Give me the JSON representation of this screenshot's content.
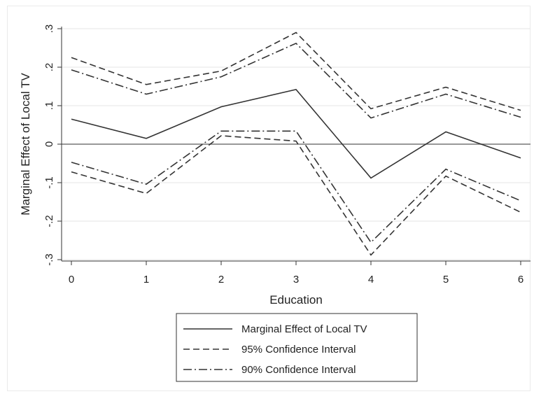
{
  "chart_data": {
    "type": "line",
    "title": "",
    "xlabel": "Education",
    "ylabel": "Marginal Effect of Local TV",
    "x": [
      0,
      1,
      2,
      3,
      4,
      5,
      6
    ],
    "xticks": [
      "0",
      "1",
      "2",
      "3",
      "4",
      "5",
      "6"
    ],
    "xlim": [
      0,
      6
    ],
    "yticks": [
      {
        "value": -0.3,
        "label": "-.3"
      },
      {
        "value": -0.2,
        "label": "-.2"
      },
      {
        "value": -0.1,
        "label": "-.1"
      },
      {
        "value": 0,
        "label": "0"
      },
      {
        "value": 0.1,
        "label": ".1"
      },
      {
        "value": 0.2,
        "label": ".2"
      },
      {
        "value": 0.3,
        "label": ".3"
      }
    ],
    "ylim": [
      -0.3,
      0.3
    ],
    "grid": true,
    "reference_line": 0,
    "legend_position": "bottom",
    "series": [
      {
        "name": "Marginal Effect of Local TV",
        "style": "solid",
        "color": "#333333",
        "values": [
          0.065,
          0.015,
          0.097,
          0.142,
          -0.088,
          0.032,
          -0.036
        ]
      },
      {
        "name": "95% Confidence Interval",
        "style": "dashed",
        "color": "#333333",
        "values": [
          0.225,
          0.155,
          0.19,
          0.29,
          0.092,
          0.148,
          0.088
        ]
      },
      {
        "name": "95% Confidence Interval",
        "style": "dashed",
        "color": "#333333",
        "legend": false,
        "values": [
          -0.072,
          -0.128,
          0.022,
          0.008,
          -0.288,
          -0.083,
          -0.177
        ]
      },
      {
        "name": "90% Confidence Interval",
        "style": "dashdot",
        "color": "#333333",
        "values": [
          0.193,
          0.13,
          0.175,
          0.262,
          0.068,
          0.13,
          0.07
        ]
      },
      {
        "name": "90% Confidence Interval",
        "style": "dashdot",
        "color": "#333333",
        "legend": false,
        "values": [
          -0.047,
          -0.104,
          0.034,
          0.034,
          -0.255,
          -0.065,
          -0.147
        ]
      }
    ]
  }
}
